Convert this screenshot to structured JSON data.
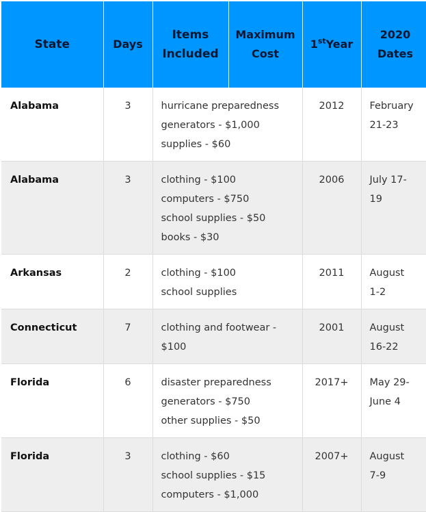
{
  "header": {
    "state": "State",
    "days": "Days",
    "items": "Items Included",
    "max_cost": "Maximum Cost",
    "first_year_sup": "st",
    "first_year_num": "1",
    "first_year_word": "Year",
    "dates_line1": "2020",
    "dates_line2": "Dates"
  },
  "rows": [
    {
      "state": "Alabama",
      "days": "3",
      "items": [
        "hurricane preparedness",
        "generators - $1,000",
        "supplies - $60"
      ],
      "year": "2012",
      "dates": [
        "February",
        "21-23"
      ]
    },
    {
      "state": "Alabama",
      "days": "3",
      "items": [
        "clothing - $100",
        "computers - $750",
        "school supplies - $50",
        "books - $30"
      ],
      "year": "2006",
      "dates": [
        "July 17-",
        "19"
      ]
    },
    {
      "state": "Arkansas",
      "days": "2",
      "items": [
        "clothing - $100",
        "school supplies"
      ],
      "year": "2011",
      "dates": [
        "August",
        "1-2"
      ]
    },
    {
      "state": "Connecticut",
      "days": "7",
      "items": [
        "clothing and footwear -",
        "$100"
      ],
      "year": "2001",
      "dates": [
        "August",
        "16-22"
      ]
    },
    {
      "state": "Florida",
      "days": "6",
      "items": [
        "disaster preparedness",
        "generators - $750",
        "other supplies - $50"
      ],
      "year": "2017+",
      "dates": [
        "May 29-",
        "June 4"
      ]
    },
    {
      "state": "Florida",
      "days": "3",
      "items": [
        "clothing - $60",
        "school supplies - $15",
        "computers - $1,000"
      ],
      "year": "2007+",
      "dates": [
        "August",
        "7-9"
      ]
    }
  ]
}
